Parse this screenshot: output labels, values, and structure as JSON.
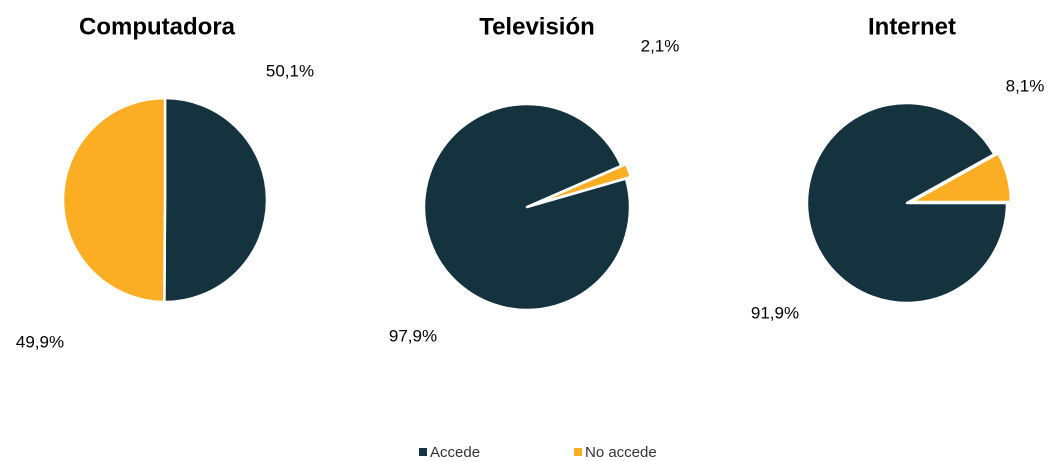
{
  "chart_data": [
    {
      "type": "pie",
      "title": "Computadora",
      "categories": [
        "Accede",
        "No accede"
      ],
      "values": [
        50.1,
        49.9
      ],
      "value_labels": [
        "50,1%",
        "49,9%"
      ],
      "colors": [
        "#14333f",
        "#fbae24"
      ],
      "start_angle": 0
    },
    {
      "type": "pie",
      "title": "Televisión",
      "categories": [
        "Accede",
        "No accede"
      ],
      "values": [
        97.9,
        2.1
      ],
      "value_labels": [
        "97,9%",
        "2,1%"
      ],
      "colors": [
        "#14333f",
        "#fbae24"
      ],
      "start_angle": 74
    },
    {
      "type": "pie",
      "title": "Internet",
      "categories": [
        "Accede",
        "No accede"
      ],
      "values": [
        91.9,
        8.1
      ],
      "value_labels": [
        "91,9%",
        "8,1%"
      ],
      "colors": [
        "#14333f",
        "#fbae24"
      ],
      "start_angle": 90
    }
  ]
}
